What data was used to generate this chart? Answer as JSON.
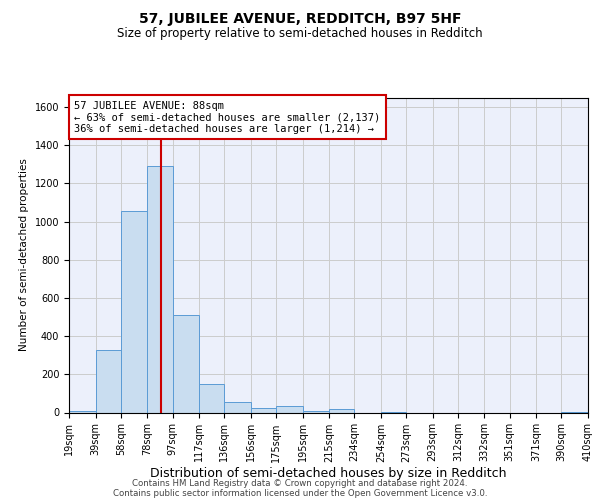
{
  "title": "57, JUBILEE AVENUE, REDDITCH, B97 5HF",
  "subtitle": "Size of property relative to semi-detached houses in Redditch",
  "xlabel": "Distribution of semi-detached houses by size in Redditch",
  "ylabel": "Number of semi-detached properties",
  "bin_labels": [
    "19sqm",
    "39sqm",
    "58sqm",
    "78sqm",
    "97sqm",
    "117sqm",
    "136sqm",
    "156sqm",
    "175sqm",
    "195sqm",
    "215sqm",
    "234sqm",
    "254sqm",
    "273sqm",
    "293sqm",
    "312sqm",
    "332sqm",
    "351sqm",
    "371sqm",
    "390sqm",
    "410sqm"
  ],
  "bin_edges": [
    19,
    39,
    58,
    78,
    97,
    117,
    136,
    156,
    175,
    195,
    215,
    234,
    254,
    273,
    293,
    312,
    332,
    351,
    371,
    390,
    410
  ],
  "bar_heights": [
    10,
    330,
    1055,
    1290,
    510,
    148,
    55,
    25,
    35,
    8,
    20,
    0,
    5,
    0,
    0,
    0,
    0,
    0,
    0,
    5
  ],
  "bar_color": "#c9ddf0",
  "bar_edge_color": "#5b9bd5",
  "red_line_x": 88,
  "red_line_color": "#cc0000",
  "annotation_line1": "57 JUBILEE AVENUE: 88sqm",
  "annotation_line2": "← 63% of semi-detached houses are smaller (2,137)",
  "annotation_line3": "36% of semi-detached houses are larger (1,214) →",
  "ylim": [
    0,
    1650
  ],
  "yticks": [
    0,
    200,
    400,
    600,
    800,
    1000,
    1200,
    1400,
    1600
  ],
  "grid_color": "#cccccc",
  "background_color": "#ecf0fb",
  "footer_line1": "Contains HM Land Registry data © Crown copyright and database right 2024.",
  "footer_line2": "Contains public sector information licensed under the Open Government Licence v3.0.",
  "title_fontsize": 10,
  "subtitle_fontsize": 8.5,
  "xlabel_fontsize": 9,
  "ylabel_fontsize": 7.5,
  "annotation_fontsize": 7.5,
  "tick_fontsize": 7
}
